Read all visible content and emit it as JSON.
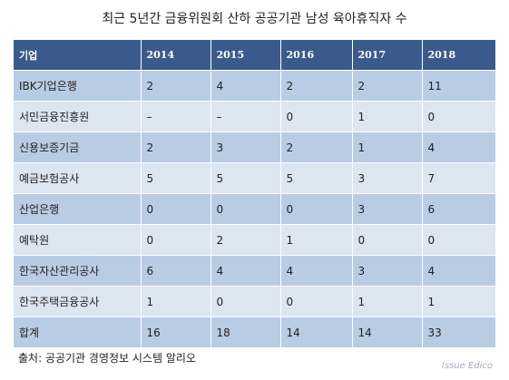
{
  "header": {
    "title": "최근 5년간 금융위원회 산하 공공기관 남성 육아휴직자 수"
  },
  "table": {
    "columns": [
      "기업",
      "2014",
      "2015",
      "2016",
      "2017",
      "2018"
    ],
    "rows": [
      [
        "IBK기업은행",
        "2",
        "4",
        "2",
        "2",
        "11"
      ],
      [
        "서민금융진흥원",
        "–",
        "–",
        "0",
        "1",
        "0"
      ],
      [
        "신용보증기금",
        "2",
        "3",
        "2",
        "1",
        "4"
      ],
      [
        "예금보험공사",
        "5",
        "5",
        "5",
        "3",
        "7"
      ],
      [
        "산업은행",
        "0",
        "0",
        "0",
        "3",
        "6"
      ],
      [
        "예탁원",
        "0",
        "2",
        "1",
        "0",
        "0"
      ],
      [
        "한국자산관리공사",
        "6",
        "4",
        "4",
        "3",
        "4"
      ],
      [
        "한국주택금융공사",
        "1",
        "0",
        "0",
        "1",
        "1"
      ],
      [
        "합계",
        "16",
        "18",
        "14",
        "14",
        "33"
      ]
    ]
  },
  "footer": {
    "source": "출처: 공공기관 경영정보 시스템 알리오",
    "watermark": "Issue Edico"
  }
}
